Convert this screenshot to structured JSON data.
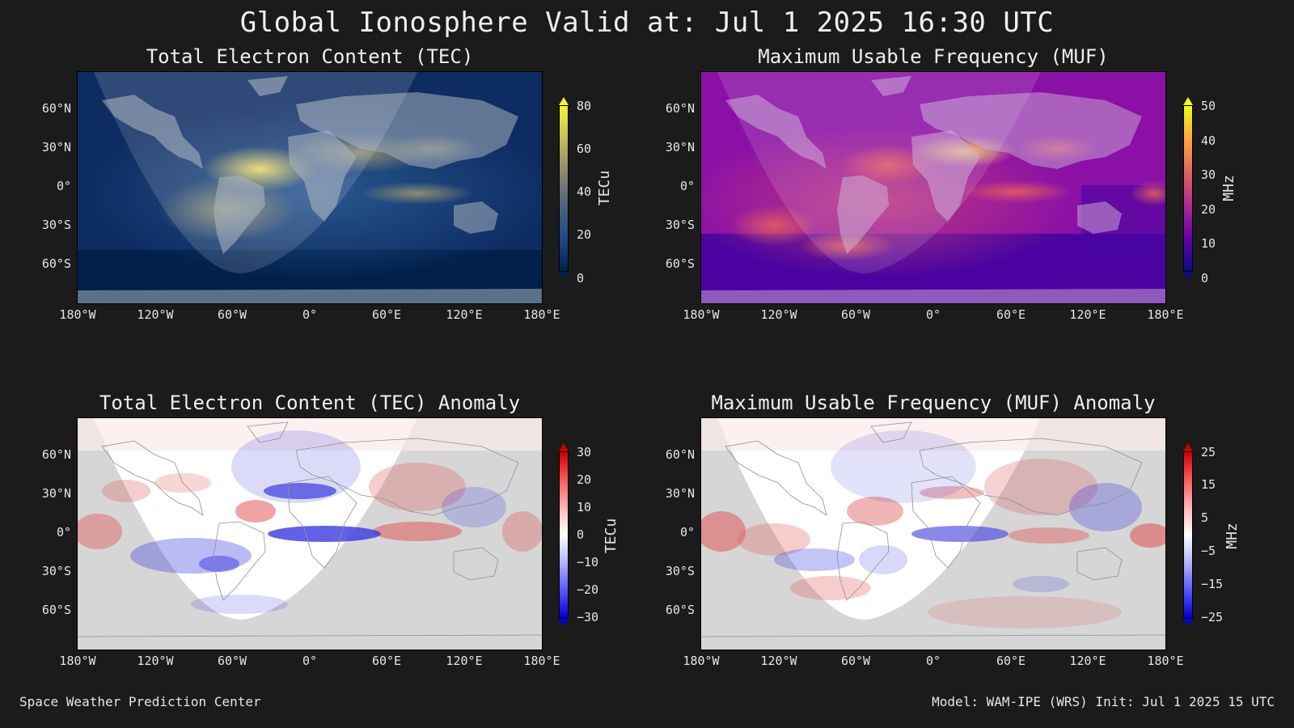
{
  "title": "Global Ionosphere Valid at: Jul 1 2025 16:30 UTC",
  "footer": {
    "left": "Space Weather Prediction Center",
    "right": "Model: WAM-IPE (WRS) Init: Jul 1 2025 15 UTC"
  },
  "lat_labels": [
    "60°N",
    "30°N",
    "0°",
    "30°S",
    "60°S"
  ],
  "lon_labels": [
    "180°W",
    "120°W",
    "60°W",
    "0°",
    "60°E",
    "120°E",
    "180°E"
  ],
  "panels": {
    "tec": {
      "title": "Total Electron Content (TEC)",
      "unit": "TECu",
      "ticks": [
        "80",
        "60",
        "40",
        "20",
        "0"
      ],
      "colors": {
        "top": "#f5f233",
        "mid": "#8c8a6e",
        "low": "#1d4a8a",
        "bottom": "#00224e",
        "ocean": "#0e3068",
        "land": "#9aa6b6",
        "hot": "#f3df6a"
      }
    },
    "muf": {
      "title": "Maximum Usable Frequency (MUF)",
      "unit": "MHz",
      "ticks": [
        "50",
        "40",
        "30",
        "20",
        "10",
        "0"
      ],
      "colors": {
        "top": "#f0f921",
        "mid": "#cc4778",
        "low": "#6a00a8",
        "bottom": "#0d0887",
        "ocean": "#7a0aa0",
        "land": "#b68ac6",
        "hot": "#fdd25a"
      }
    },
    "tec_anomaly": {
      "title": "Total Electron Content (TEC) Anomaly",
      "unit": "TECu",
      "ticks": [
        "30",
        "20",
        "10",
        "0",
        "−10",
        "−20",
        "−30"
      ],
      "colors": {
        "top": "#cc0000",
        "mid": "#ffffff",
        "bottom": "#0000d8",
        "red": "#e05a5a",
        "blue": "#3a3ae0"
      }
    },
    "muf_anomaly": {
      "title": "Maximum Usable Frequency (MUF) Anomaly",
      "unit": "MHz",
      "ticks": [
        "25",
        "15",
        "5",
        "−5",
        "−15",
        "−25"
      ],
      "colors": {
        "top": "#cc0000",
        "mid": "#ffffff",
        "bottom": "#0000d8",
        "red": "#e05a5a",
        "blue": "#3a3ae0"
      }
    }
  }
}
